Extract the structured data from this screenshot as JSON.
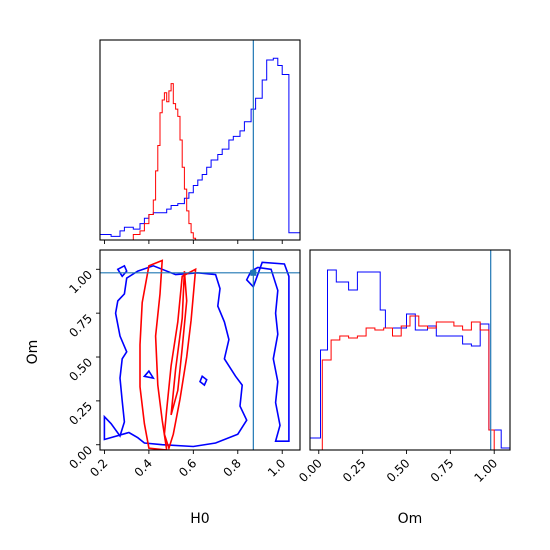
{
  "chart_data": {
    "type": "corner",
    "parameters": [
      "H0",
      "Om"
    ],
    "truth": {
      "H0": 0.87,
      "Om": 0.98
    },
    "colors": {
      "series_a": "#0000ff",
      "series_b": "#ff0000",
      "truth": "#1f77b4"
    },
    "xlabel": "H0",
    "ylabel": "Om",
    "grid": false,
    "legend": "none",
    "panels": {
      "hist_h0": {
        "type": "histogram",
        "xlim": [
          0.18,
          1.08
        ],
        "ylim": [
          0,
          1.1
        ],
        "ticks": [
          0.2,
          0.4,
          0.6,
          0.8,
          1.0
        ],
        "show_tick_labels": false,
        "series": [
          {
            "color": "#0000ff",
            "edges": [
              0.18,
              0.23,
              0.27,
              0.29,
              0.33,
              0.36,
              0.38,
              0.4,
              0.42,
              0.44,
              0.48,
              0.5,
              0.53,
              0.56,
              0.58,
              0.6,
              0.62,
              0.64,
              0.66,
              0.68,
              0.71,
              0.73,
              0.76,
              0.78,
              0.81,
              0.83,
              0.86,
              0.88,
              0.91,
              0.93,
              0.96,
              0.98,
              1.0,
              1.03,
              1.08
            ],
            "values": [
              0.03,
              0.02,
              0.05,
              0.07,
              0.06,
              0.09,
              0.12,
              0.14,
              0.15,
              0.15,
              0.17,
              0.19,
              0.2,
              0.23,
              0.26,
              0.3,
              0.33,
              0.36,
              0.4,
              0.44,
              0.47,
              0.5,
              0.55,
              0.57,
              0.6,
              0.65,
              0.72,
              0.78,
              0.88,
              0.99,
              1.0,
              0.96,
              0.91,
              0.04
            ]
          },
          {
            "color": "#ff0000",
            "edges": [
              0.33,
              0.36,
              0.38,
              0.4,
              0.42,
              0.43,
              0.44,
              0.45,
              0.46,
              0.47,
              0.48,
              0.49,
              0.5,
              0.51,
              0.52,
              0.53,
              0.54,
              0.55,
              0.56,
              0.57,
              0.58,
              0.59,
              0.6,
              0.61
            ],
            "values": [
              0.03,
              0.05,
              0.09,
              0.14,
              0.22,
              0.38,
              0.52,
              0.7,
              0.77,
              0.81,
              0.76,
              0.82,
              0.86,
              0.75,
              0.72,
              0.68,
              0.55,
              0.4,
              0.28,
              0.16,
              0.09,
              0.04,
              0.01
            ]
          }
        ]
      },
      "joint": {
        "type": "contour",
        "xlim": [
          0.18,
          1.08
        ],
        "ylim": [
          -0.03,
          1.11
        ],
        "xticks": [
          0.2,
          0.4,
          0.6,
          0.8,
          1.0
        ],
        "xtick_labels": [
          "0.2",
          "0.4",
          "0.6",
          "0.8",
          "1.0"
        ],
        "yticks": [
          0.0,
          0.25,
          0.5,
          0.75,
          1.0
        ],
        "ytick_labels": [
          "0.00",
          "0.25",
          "0.50",
          "0.75",
          "1.00"
        ],
        "contours": [
          {
            "color": "#0000ff",
            "points": [
              [
                0.2,
                0.16
              ],
              [
                0.23,
                0.12
              ],
              [
                0.27,
                0.05
              ],
              [
                0.29,
                0.13
              ],
              [
                0.28,
                0.25
              ],
              [
                0.27,
                0.38
              ],
              [
                0.28,
                0.49
              ],
              [
                0.3,
                0.53
              ],
              [
                0.27,
                0.62
              ],
              [
                0.25,
                0.75
              ],
              [
                0.26,
                0.82
              ],
              [
                0.29,
                0.86
              ],
              [
                0.3,
                0.95
              ],
              [
                0.35,
                0.99
              ],
              [
                0.42,
                1.02
              ],
              [
                0.52,
                0.97
              ],
              [
                0.62,
                0.98
              ],
              [
                0.7,
                0.97
              ],
              [
                0.72,
                0.89
              ],
              [
                0.71,
                0.79
              ],
              [
                0.74,
                0.7
              ],
              [
                0.76,
                0.6
              ],
              [
                0.74,
                0.49
              ],
              [
                0.79,
                0.39
              ],
              [
                0.82,
                0.34
              ],
              [
                0.81,
                0.22
              ],
              [
                0.84,
                0.14
              ],
              [
                0.8,
                0.06
              ],
              [
                0.7,
                0.01
              ],
              [
                0.6,
                -0.01
              ],
              [
                0.46,
                0.0
              ],
              [
                0.38,
                0.01
              ],
              [
                0.35,
                0.04
              ],
              [
                0.31,
                0.07
              ],
              [
                0.2,
                0.03
              ]
            ]
          },
          {
            "color": "#0000ff",
            "points": [
              [
                0.87,
                0.9
              ],
              [
                0.84,
                0.94
              ],
              [
                0.86,
                0.99
              ],
              [
                0.89,
                1.01
              ],
              [
                0.95,
                1.0
              ],
              [
                0.98,
                0.88
              ],
              [
                0.97,
                0.75
              ],
              [
                0.98,
                0.63
              ],
              [
                0.96,
                0.49
              ],
              [
                0.98,
                0.36
              ],
              [
                0.97,
                0.24
              ],
              [
                0.99,
                0.11
              ],
              [
                0.97,
                0.02
              ],
              [
                1.03,
                0.02
              ],
              [
                1.03,
                0.96
              ],
              [
                1.01,
                1.03
              ],
              [
                0.91,
                1.04
              ],
              [
                0.87,
                0.9
              ]
            ]
          },
          {
            "color": "#0000ff",
            "points": [
              [
                0.26,
                1.0
              ],
              [
                0.28,
                0.96
              ],
              [
                0.3,
                0.99
              ],
              [
                0.29,
                1.02
              ],
              [
                0.26,
                1.0
              ]
            ]
          },
          {
            "color": "#0000ff",
            "points": [
              [
                0.63,
                0.36
              ],
              [
                0.65,
                0.34
              ],
              [
                0.66,
                0.37
              ],
              [
                0.64,
                0.39
              ],
              [
                0.63,
                0.36
              ]
            ]
          },
          {
            "color": "#0000ff",
            "points": [
              [
                0.38,
                0.39
              ],
              [
                0.4,
                0.42
              ],
              [
                0.42,
                0.38
              ],
              [
                0.38,
                0.39
              ]
            ]
          },
          {
            "color": "#ff0000",
            "points": [
              [
                0.36,
                0.33
              ],
              [
                0.36,
                0.57
              ],
              [
                0.37,
                0.81
              ],
              [
                0.4,
                1.02
              ],
              [
                0.46,
                1.05
              ],
              [
                0.45,
                0.86
              ],
              [
                0.43,
                0.62
              ],
              [
                0.44,
                0.34
              ],
              [
                0.46,
                0.14
              ],
              [
                0.48,
                -0.03
              ],
              [
                0.4,
                -0.02
              ],
              [
                0.38,
                0.12
              ],
              [
                0.36,
                0.33
              ]
            ]
          },
          {
            "color": "#ff0000",
            "points": [
              [
                0.47,
                0.06
              ],
              [
                0.48,
                0.2
              ],
              [
                0.5,
                0.45
              ],
              [
                0.53,
                0.7
              ],
              [
                0.55,
                0.96
              ],
              [
                0.61,
                1.0
              ],
              [
                0.59,
                0.71
              ],
              [
                0.57,
                0.5
              ],
              [
                0.54,
                0.26
              ],
              [
                0.51,
                0.06
              ],
              [
                0.49,
                -0.02
              ],
              [
                0.47,
                0.06
              ]
            ]
          },
          {
            "color": "#ff0000",
            "points": [
              [
                0.5,
                0.17
              ],
              [
                0.52,
                0.43
              ],
              [
                0.55,
                0.72
              ],
              [
                0.56,
                0.99
              ],
              [
                0.57,
                0.82
              ],
              [
                0.55,
                0.55
              ],
              [
                0.53,
                0.31
              ],
              [
                0.5,
                0.17
              ]
            ]
          }
        ]
      },
      "hist_om": {
        "type": "histogram",
        "xlim": [
          -0.05,
          1.09
        ],
        "ylim": [
          0,
          1.0
        ],
        "xticks": [
          0.0,
          0.25,
          0.5,
          0.75,
          1.0
        ],
        "xtick_labels": [
          "0.00",
          "0.25",
          "0.50",
          "0.75",
          "1.00"
        ],
        "series": [
          {
            "color": "#0000ff",
            "edges": [
              -0.05,
              0.01,
              0.05,
              0.1,
              0.17,
              0.22,
              0.25,
              0.35,
              0.38,
              0.5,
              0.55,
              0.62,
              0.67,
              0.77,
              0.82,
              0.87,
              0.92,
              0.97,
              1.04,
              1.09
            ],
            "values": [
              0.06,
              0.5,
              0.9,
              0.84,
              0.8,
              0.89,
              0.89,
              0.7,
              0.61,
              0.68,
              0.6,
              0.62,
              0.57,
              0.57,
              0.53,
              0.52,
              0.63,
              0.1,
              0.01
            ]
          },
          {
            "color": "#ff0000",
            "edges": [
              0.0,
              0.02,
              0.07,
              0.12,
              0.17,
              0.22,
              0.27,
              0.32,
              0.37,
              0.42,
              0.47,
              0.52,
              0.57,
              0.62,
              0.67,
              0.72,
              0.77,
              0.82,
              0.87,
              0.92,
              0.97,
              1.0
            ],
            "values": [
              0.0,
              0.45,
              0.55,
              0.57,
              0.56,
              0.57,
              0.61,
              0.6,
              0.61,
              0.57,
              0.62,
              0.67,
              0.62,
              0.61,
              0.64,
              0.64,
              0.62,
              0.6,
              0.64,
              0.6,
              0.1
            ]
          }
        ]
      }
    }
  }
}
